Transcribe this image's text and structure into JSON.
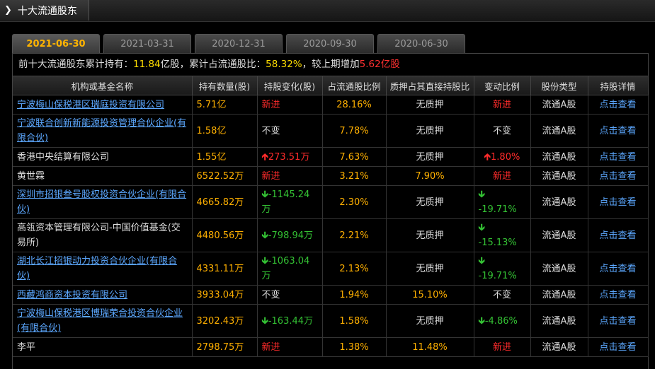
{
  "header": {
    "title": "十大流通股东"
  },
  "tabs": [
    "2021-06-30",
    "2021-03-31",
    "2020-12-31",
    "2020-09-30",
    "2020-06-30"
  ],
  "summary": {
    "prefix": "前十大流通股东累计持有：",
    "total": "11.84",
    "total_unit": "亿股，累计占流通股比：",
    "ratio": "58.32%",
    "mid": "，较上期增加",
    "increase": "5.62",
    "increase_unit": "亿股"
  },
  "columns": [
    "机构或基金名称",
    "持有数量(股)",
    "持股变化(股)",
    "占流通股比例",
    "质押占其直接持股比",
    "变动比例",
    "股份类型",
    "持股详情"
  ],
  "rows": [
    {
      "name": "宁波梅山保税港区瑞庭投资有限公司",
      "link": true,
      "holding": "5.71亿",
      "change": "新进",
      "change_dir": "new",
      "pct": "28.16%",
      "pledge": "无质押",
      "ratio": "新进",
      "ratio_dir": "new",
      "type": "流通A股",
      "detail": "点击查看"
    },
    {
      "name": "宁波联合创新新能源投资管理合伙企业(有限合伙)",
      "link": true,
      "holding": "1.58亿",
      "change": "不变",
      "change_dir": "same",
      "pct": "7.78%",
      "pledge": "无质押",
      "ratio": "不变",
      "ratio_dir": "same",
      "type": "流通A股",
      "detail": "点击查看"
    },
    {
      "name": "香港中央结算有限公司",
      "link": false,
      "holding": "1.55亿",
      "change": "273.51万",
      "change_dir": "up",
      "pct": "7.63%",
      "pledge": "无质押",
      "ratio": "1.80%",
      "ratio_dir": "up",
      "type": "流通A股",
      "detail": "点击查看"
    },
    {
      "name": "黄世霖",
      "link": false,
      "holding": "6522.52万",
      "change": "新进",
      "change_dir": "new",
      "pct": "3.21%",
      "pledge": "7.90%",
      "ratio": "新进",
      "ratio_dir": "new",
      "type": "流通A股",
      "detail": "点击查看"
    },
    {
      "name": "深圳市招银叁号股权投资合伙企业(有限合伙)",
      "link": true,
      "holding": "4665.82万",
      "change": "-1145.24万",
      "change_dir": "down",
      "pct": "2.30%",
      "pledge": "无质押",
      "ratio": "-19.71%",
      "ratio_dir": "down",
      "type": "流通A股",
      "detail": "点击查看"
    },
    {
      "name": "高瓴资本管理有限公司-中国价值基金(交易所)",
      "link": false,
      "holding": "4480.56万",
      "change": "-798.94万",
      "change_dir": "down",
      "pct": "2.21%",
      "pledge": "无质押",
      "ratio": "-15.13%",
      "ratio_dir": "down",
      "type": "流通A股",
      "detail": "点击查看"
    },
    {
      "name": "湖北长江招银动力投资合伙企业(有限合伙)",
      "link": true,
      "holding": "4331.11万",
      "change": "-1063.04万",
      "change_dir": "down",
      "pct": "2.13%",
      "pledge": "无质押",
      "ratio": "-19.71%",
      "ratio_dir": "down",
      "type": "流通A股",
      "detail": "点击查看"
    },
    {
      "name": "西藏鸿商资本投资有限公司",
      "link": true,
      "holding": "3933.04万",
      "change": "不变",
      "change_dir": "same",
      "pct": "1.94%",
      "pledge": "15.10%",
      "ratio": "不变",
      "ratio_dir": "same",
      "type": "流通A股",
      "detail": "点击查看"
    },
    {
      "name": "宁波梅山保税港区博瑞荣合投资合伙企业(有限合伙)",
      "link": true,
      "holding": "3202.43万",
      "change": "-163.44万",
      "change_dir": "down",
      "pct": "1.58%",
      "pledge": "无质押",
      "ratio": "-4.86%",
      "ratio_dir": "down",
      "type": "流通A股",
      "detail": "点击查看"
    },
    {
      "name": "李平",
      "link": false,
      "holding": "2798.75万",
      "change": "新进",
      "change_dir": "new",
      "pct": "1.38%",
      "pledge": "11.48%",
      "ratio": "新进",
      "ratio_dir": "new",
      "type": "流通A股",
      "detail": "点击查看"
    }
  ]
}
